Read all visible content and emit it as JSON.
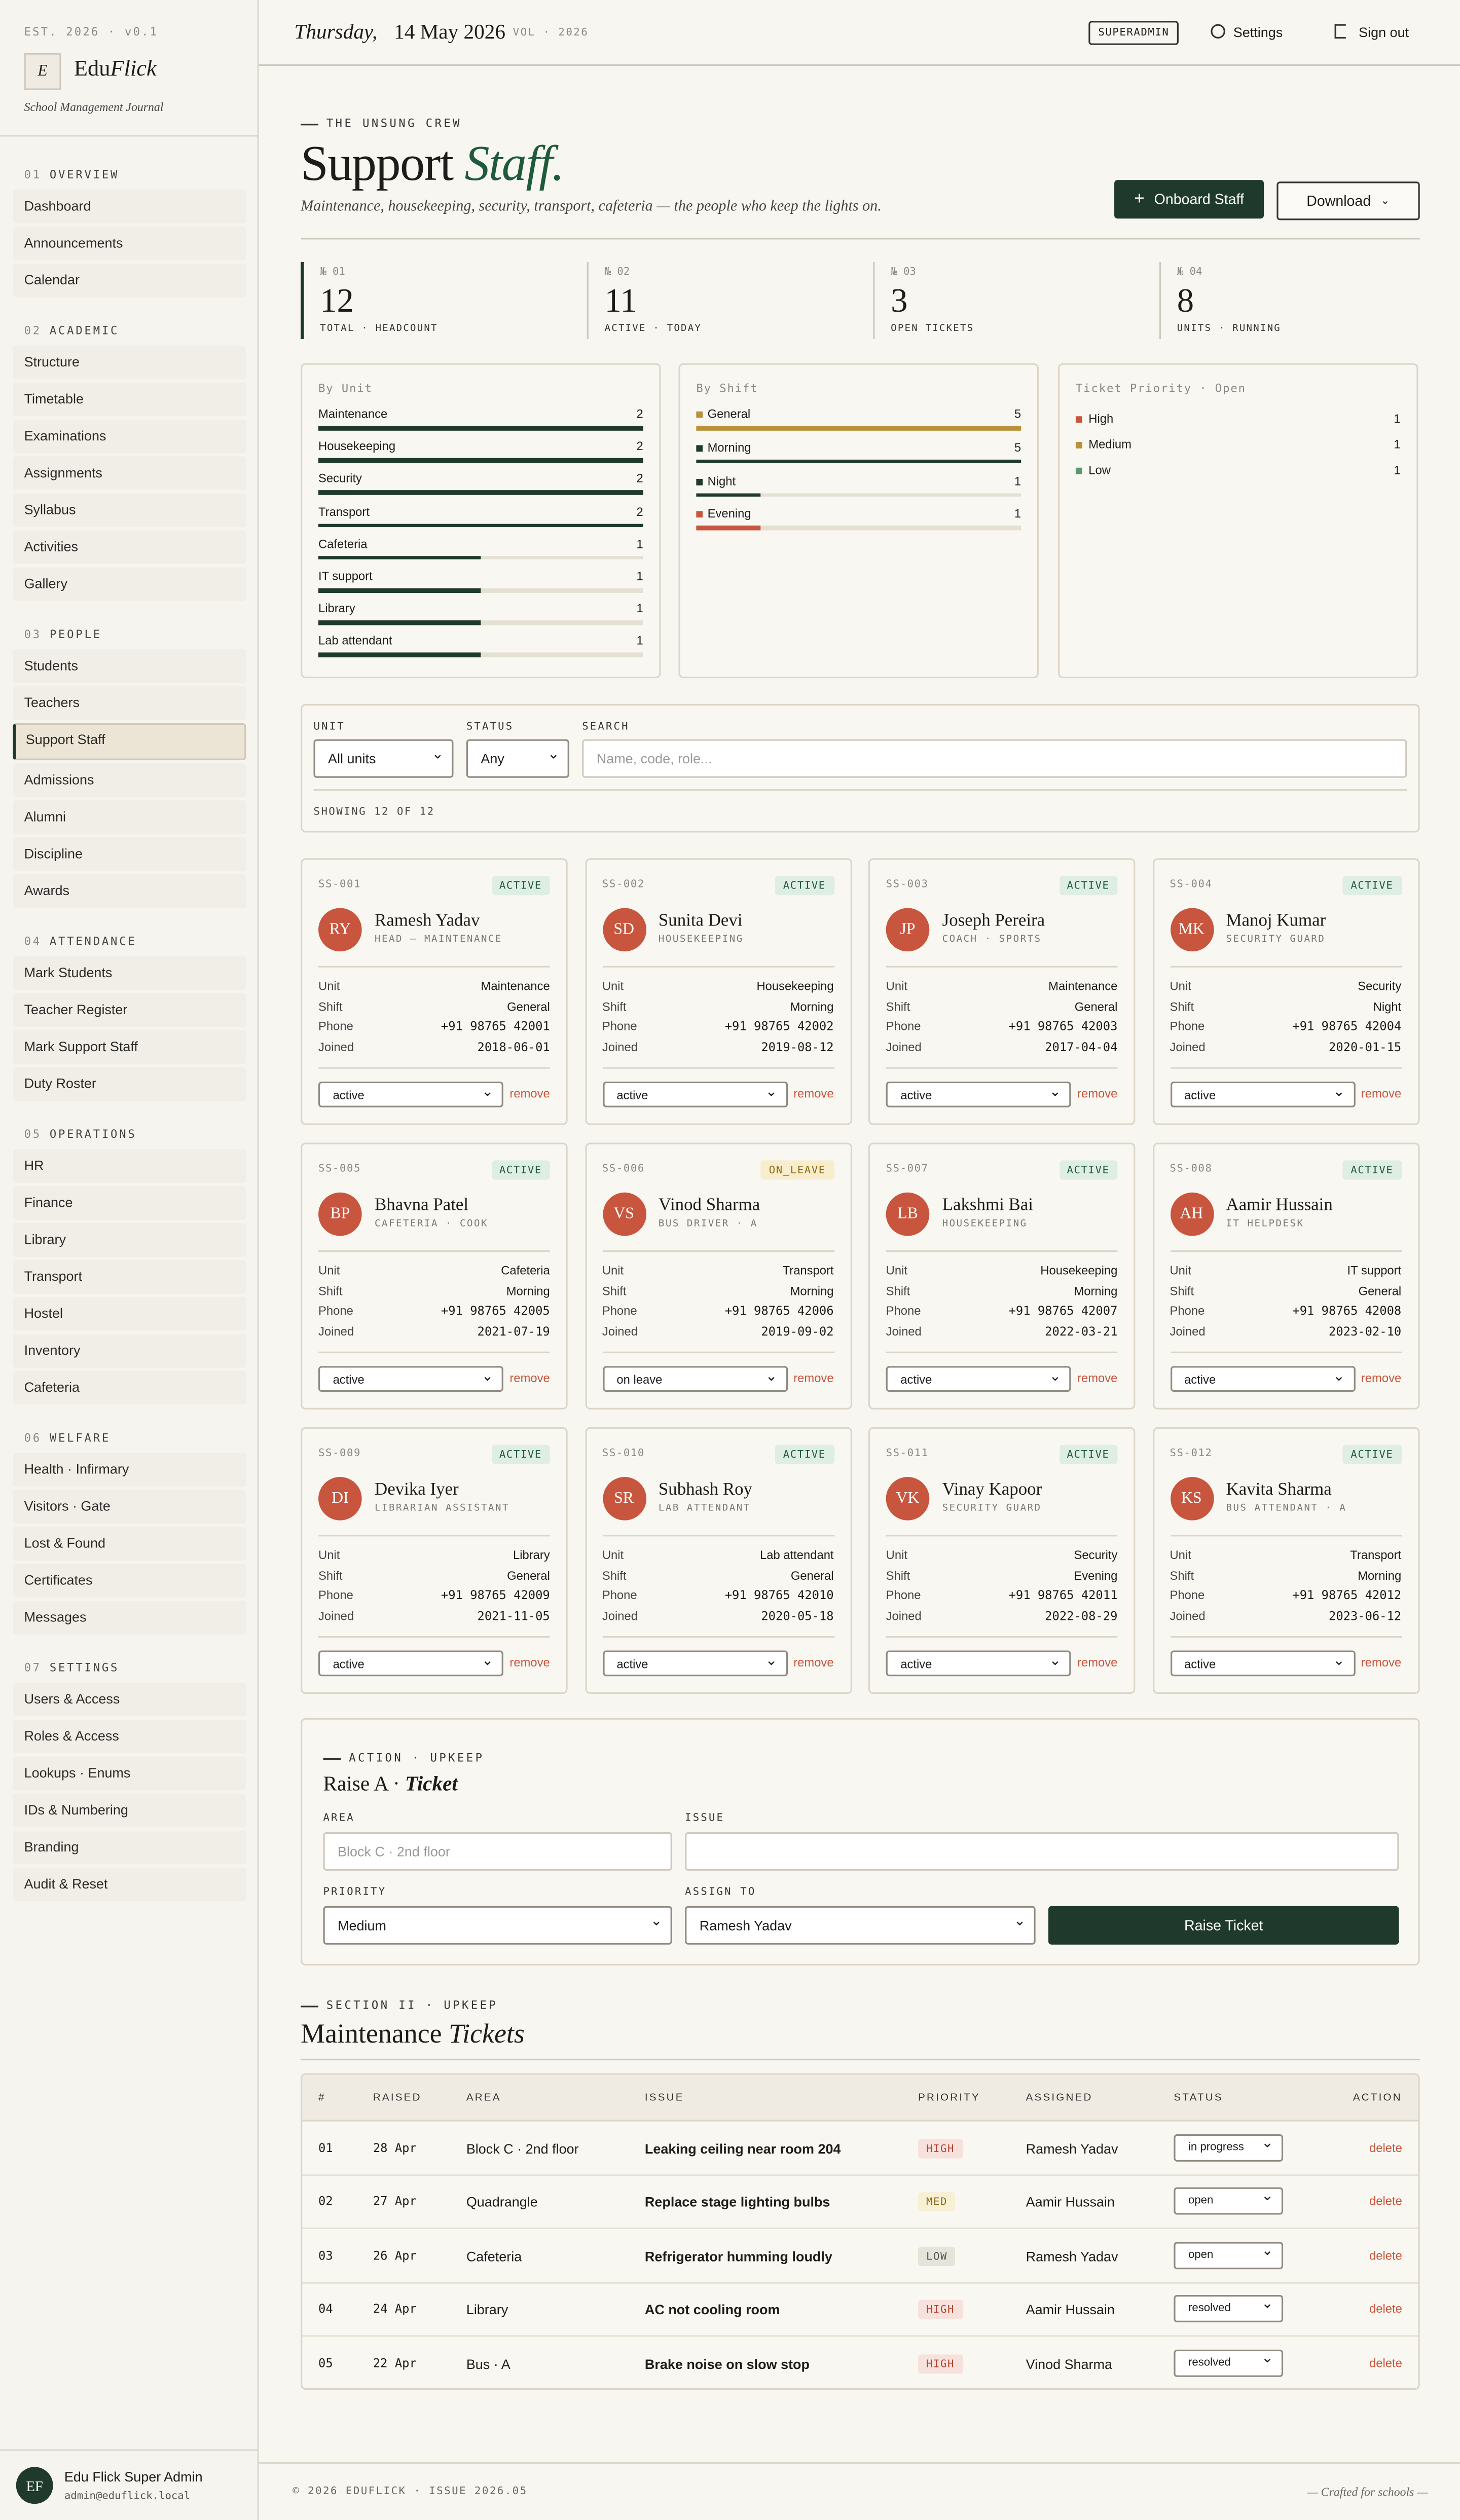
{
  "sidebar": {
    "meta": "EST. 2026 · v0.1",
    "logo": "E",
    "brand_a": "Edu",
    "brand_b": "Flick",
    "tagline": "School Management Journal",
    "sections": [
      {
        "num": "01",
        "title": "OVERVIEW",
        "items": [
          "Dashboard",
          "Announcements",
          "Calendar"
        ]
      },
      {
        "num": "02",
        "title": "ACADEMIC",
        "items": [
          "Structure",
          "Timetable",
          "Examinations",
          "Assignments",
          "Syllabus",
          "Activities",
          "Gallery"
        ]
      },
      {
        "num": "03",
        "title": "PEOPLE",
        "items": [
          "Students",
          "Teachers",
          "Support Staff",
          "Admissions",
          "Alumni",
          "Discipline",
          "Awards"
        ]
      },
      {
        "num": "04",
        "title": "ATTENDANCE",
        "items": [
          "Mark Students",
          "Teacher Register",
          "Mark Support Staff",
          "Duty Roster"
        ]
      },
      {
        "num": "05",
        "title": "OPERATIONS",
        "items": [
          "HR",
          "Finance",
          "Library",
          "Transport",
          "Hostel",
          "Inventory",
          "Cafeteria"
        ]
      },
      {
        "num": "06",
        "title": "WELFARE",
        "items": [
          "Health · Infirmary",
          "Visitors · Gate",
          "Lost & Found",
          "Certificates",
          "Messages"
        ]
      },
      {
        "num": "07",
        "title": "SETTINGS",
        "items": [
          "Users & Access",
          "Roles & Access",
          "Lookups · Enums",
          "IDs & Numbering",
          "Branding",
          "Audit & Reset"
        ]
      }
    ],
    "active": "Support Staff",
    "user": {
      "initials": "EF",
      "name": "Edu Flick Super Admin",
      "email": "admin@eduflick.local"
    }
  },
  "topbar": {
    "day": "Thursday,",
    "date": "14 May 2026",
    "vol": "VOL · 2026",
    "role": "SUPERADMIN",
    "settings": "Settings",
    "signout": "Sign out"
  },
  "header": {
    "eyebrow": "THE UNSUNG CREW",
    "title_a": "Support",
    "title_b": "Staff.",
    "subtitle": "Maintenance, housekeeping, security, transport, cafeteria — the people who keep the lights on.",
    "primary": "Onboard Staff",
    "secondary": "Download"
  },
  "stats": [
    {
      "num": "№ 01",
      "value": "12",
      "label": "TOTAL · HEADCOUNT"
    },
    {
      "num": "№ 02",
      "value": "11",
      "label": "ACTIVE · TODAY"
    },
    {
      "num": "№ 03",
      "value": "3",
      "label": "OPEN TICKETS"
    },
    {
      "num": "№ 04",
      "value": "8",
      "label": "UNITS · RUNNING"
    }
  ],
  "panels": {
    "unit": {
      "title": "By Unit",
      "color": "#1f3a2c",
      "rows": [
        {
          "label": "Maintenance",
          "value": 2
        },
        {
          "label": "Housekeeping",
          "value": 2
        },
        {
          "label": "Security",
          "value": 2
        },
        {
          "label": "Transport",
          "value": 2
        },
        {
          "label": "Cafeteria",
          "value": 1
        },
        {
          "label": "IT support",
          "value": 1
        },
        {
          "label": "Library",
          "value": 1
        },
        {
          "label": "Lab attendant",
          "value": 1
        }
      ]
    },
    "shift": {
      "title": "By Shift",
      "rows": [
        {
          "label": "General",
          "value": 5,
          "color": "#b8913a"
        },
        {
          "label": "Morning",
          "value": 5,
          "color": "#1f3a2c"
        },
        {
          "label": "Night",
          "value": 1,
          "color": "#1f3a2c"
        },
        {
          "label": "Evening",
          "value": 1,
          "color": "#c8553d"
        }
      ]
    },
    "priority": {
      "title": "Ticket Priority · Open",
      "rows": [
        {
          "label": "High",
          "value": 1,
          "color": "#c8553d"
        },
        {
          "label": "Medium",
          "value": 1,
          "color": "#b8913a"
        },
        {
          "label": "Low",
          "value": 1,
          "color": "#5a9a73"
        }
      ]
    }
  },
  "filters": {
    "unit_label": "UNIT",
    "unit": "All units",
    "status_label": "STATUS",
    "status": "Any",
    "search_label": "SEARCH",
    "search_placeholder": "Name, code, role...",
    "showing": "SHOWING 12 OF 12"
  },
  "field_labels": {
    "unit": "Unit",
    "shift": "Shift",
    "phone": "Phone",
    "joined": "Joined"
  },
  "remove": "remove",
  "staff": [
    {
      "code": "SS-001",
      "badge": "ACTIVE",
      "initials": "RY",
      "name": "Ramesh Yadav",
      "role": "HEAD — MAINTENANCE",
      "unit": "Maintenance",
      "shift": "General",
      "phone": "+91 98765 42001",
      "joined": "2018-06-01",
      "status": "active"
    },
    {
      "code": "SS-002",
      "badge": "ACTIVE",
      "initials": "SD",
      "name": "Sunita Devi",
      "role": "HOUSEKEEPING",
      "unit": "Housekeeping",
      "shift": "Morning",
      "phone": "+91 98765 42002",
      "joined": "2019-08-12",
      "status": "active"
    },
    {
      "code": "SS-003",
      "badge": "ACTIVE",
      "initials": "JP",
      "name": "Joseph Pereira",
      "role": "COACH · SPORTS",
      "unit": "Maintenance",
      "shift": "General",
      "phone": "+91 98765 42003",
      "joined": "2017-04-04",
      "status": "active"
    },
    {
      "code": "SS-004",
      "badge": "ACTIVE",
      "initials": "MK",
      "name": "Manoj Kumar",
      "role": "SECURITY GUARD",
      "unit": "Security",
      "shift": "Night",
      "phone": "+91 98765 42004",
      "joined": "2020-01-15",
      "status": "active"
    },
    {
      "code": "SS-005",
      "badge": "ACTIVE",
      "initials": "BP",
      "name": "Bhavna Patel",
      "role": "CAFETERIA · COOK",
      "unit": "Cafeteria",
      "shift": "Morning",
      "phone": "+91 98765 42005",
      "joined": "2021-07-19",
      "status": "active"
    },
    {
      "code": "SS-006",
      "badge": "ON_LEAVE",
      "initials": "VS",
      "name": "Vinod Sharma",
      "role": "BUS DRIVER · A",
      "unit": "Transport",
      "shift": "Morning",
      "phone": "+91 98765 42006",
      "joined": "2019-09-02",
      "status": "on leave"
    },
    {
      "code": "SS-007",
      "badge": "ACTIVE",
      "initials": "LB",
      "name": "Lakshmi Bai",
      "role": "HOUSEKEEPING",
      "unit": "Housekeeping",
      "shift": "Morning",
      "phone": "+91 98765 42007",
      "joined": "2022-03-21",
      "status": "active"
    },
    {
      "code": "SS-008",
      "badge": "ACTIVE",
      "initials": "AH",
      "name": "Aamir Hussain",
      "role": "IT HELPDESK",
      "unit": "IT support",
      "shift": "General",
      "phone": "+91 98765 42008",
      "joined": "2023-02-10",
      "status": "active"
    },
    {
      "code": "SS-009",
      "badge": "ACTIVE",
      "initials": "DI",
      "name": "Devika Iyer",
      "role": "LIBRARIAN ASSISTANT",
      "unit": "Library",
      "shift": "General",
      "phone": "+91 98765 42009",
      "joined": "2021-11-05",
      "status": "active"
    },
    {
      "code": "SS-010",
      "badge": "ACTIVE",
      "initials": "SR",
      "name": "Subhash Roy",
      "role": "LAB ATTENDANT",
      "unit": "Lab attendant",
      "shift": "General",
      "phone": "+91 98765 42010",
      "joined": "2020-05-18",
      "status": "active"
    },
    {
      "code": "SS-011",
      "badge": "ACTIVE",
      "initials": "VK",
      "name": "Vinay Kapoor",
      "role": "SECURITY GUARD",
      "unit": "Security",
      "shift": "Evening",
      "phone": "+91 98765 42011",
      "joined": "2022-08-29",
      "status": "active"
    },
    {
      "code": "SS-012",
      "badge": "ACTIVE",
      "initials": "KS",
      "name": "Kavita Sharma",
      "role": "BUS ATTENDANT · A",
      "unit": "Transport",
      "shift": "Morning",
      "phone": "+91 98765 42012",
      "joined": "2023-06-12",
      "status": "active"
    }
  ],
  "ticket_form": {
    "eyebrow": "ACTION · UPKEEP",
    "title_a": "Raise A ·",
    "title_b": "Ticket",
    "area_label": "AREA",
    "area_placeholder": "Block C · 2nd floor",
    "issue_label": "ISSUE",
    "priority_label": "PRIORITY",
    "priority": "Medium",
    "assign_label": "ASSIGN TO",
    "assign": "Ramesh Yadav",
    "button": "Raise Ticket"
  },
  "tickets": {
    "eyebrow": "SECTION II · UPKEEP",
    "title_a": "Maintenance",
    "title_b": "Tickets",
    "headers": [
      "#",
      "RAISED",
      "AREA",
      "ISSUE",
      "PRIORITY",
      "ASSIGNED",
      "STATUS",
      "ACTION"
    ],
    "rows": [
      [
        "01",
        "28 Apr",
        "Block C · 2nd floor",
        "Leaking ceiling near room 204",
        "HIGH",
        "Ramesh Yadav",
        "in progress",
        "delete"
      ],
      [
        "02",
        "27 Apr",
        "Quadrangle",
        "Replace stage lighting bulbs",
        "MED",
        "Aamir Hussain",
        "open",
        "delete"
      ],
      [
        "03",
        "26 Apr",
        "Cafeteria",
        "Refrigerator humming loudly",
        "LOW",
        "Ramesh Yadav",
        "open",
        "delete"
      ],
      [
        "04",
        "24 Apr",
        "Library",
        "AC not cooling room",
        "HIGH",
        "Aamir Hussain",
        "resolved",
        "delete"
      ],
      [
        "05",
        "22 Apr",
        "Bus · A",
        "Brake noise on slow stop",
        "HIGH",
        "Vinod Sharma",
        "resolved",
        "delete"
      ]
    ]
  },
  "footer": {
    "left": "© 2026 EDUFLICK · ISSUE 2026.05",
    "right": "— Crafted for schools —"
  }
}
